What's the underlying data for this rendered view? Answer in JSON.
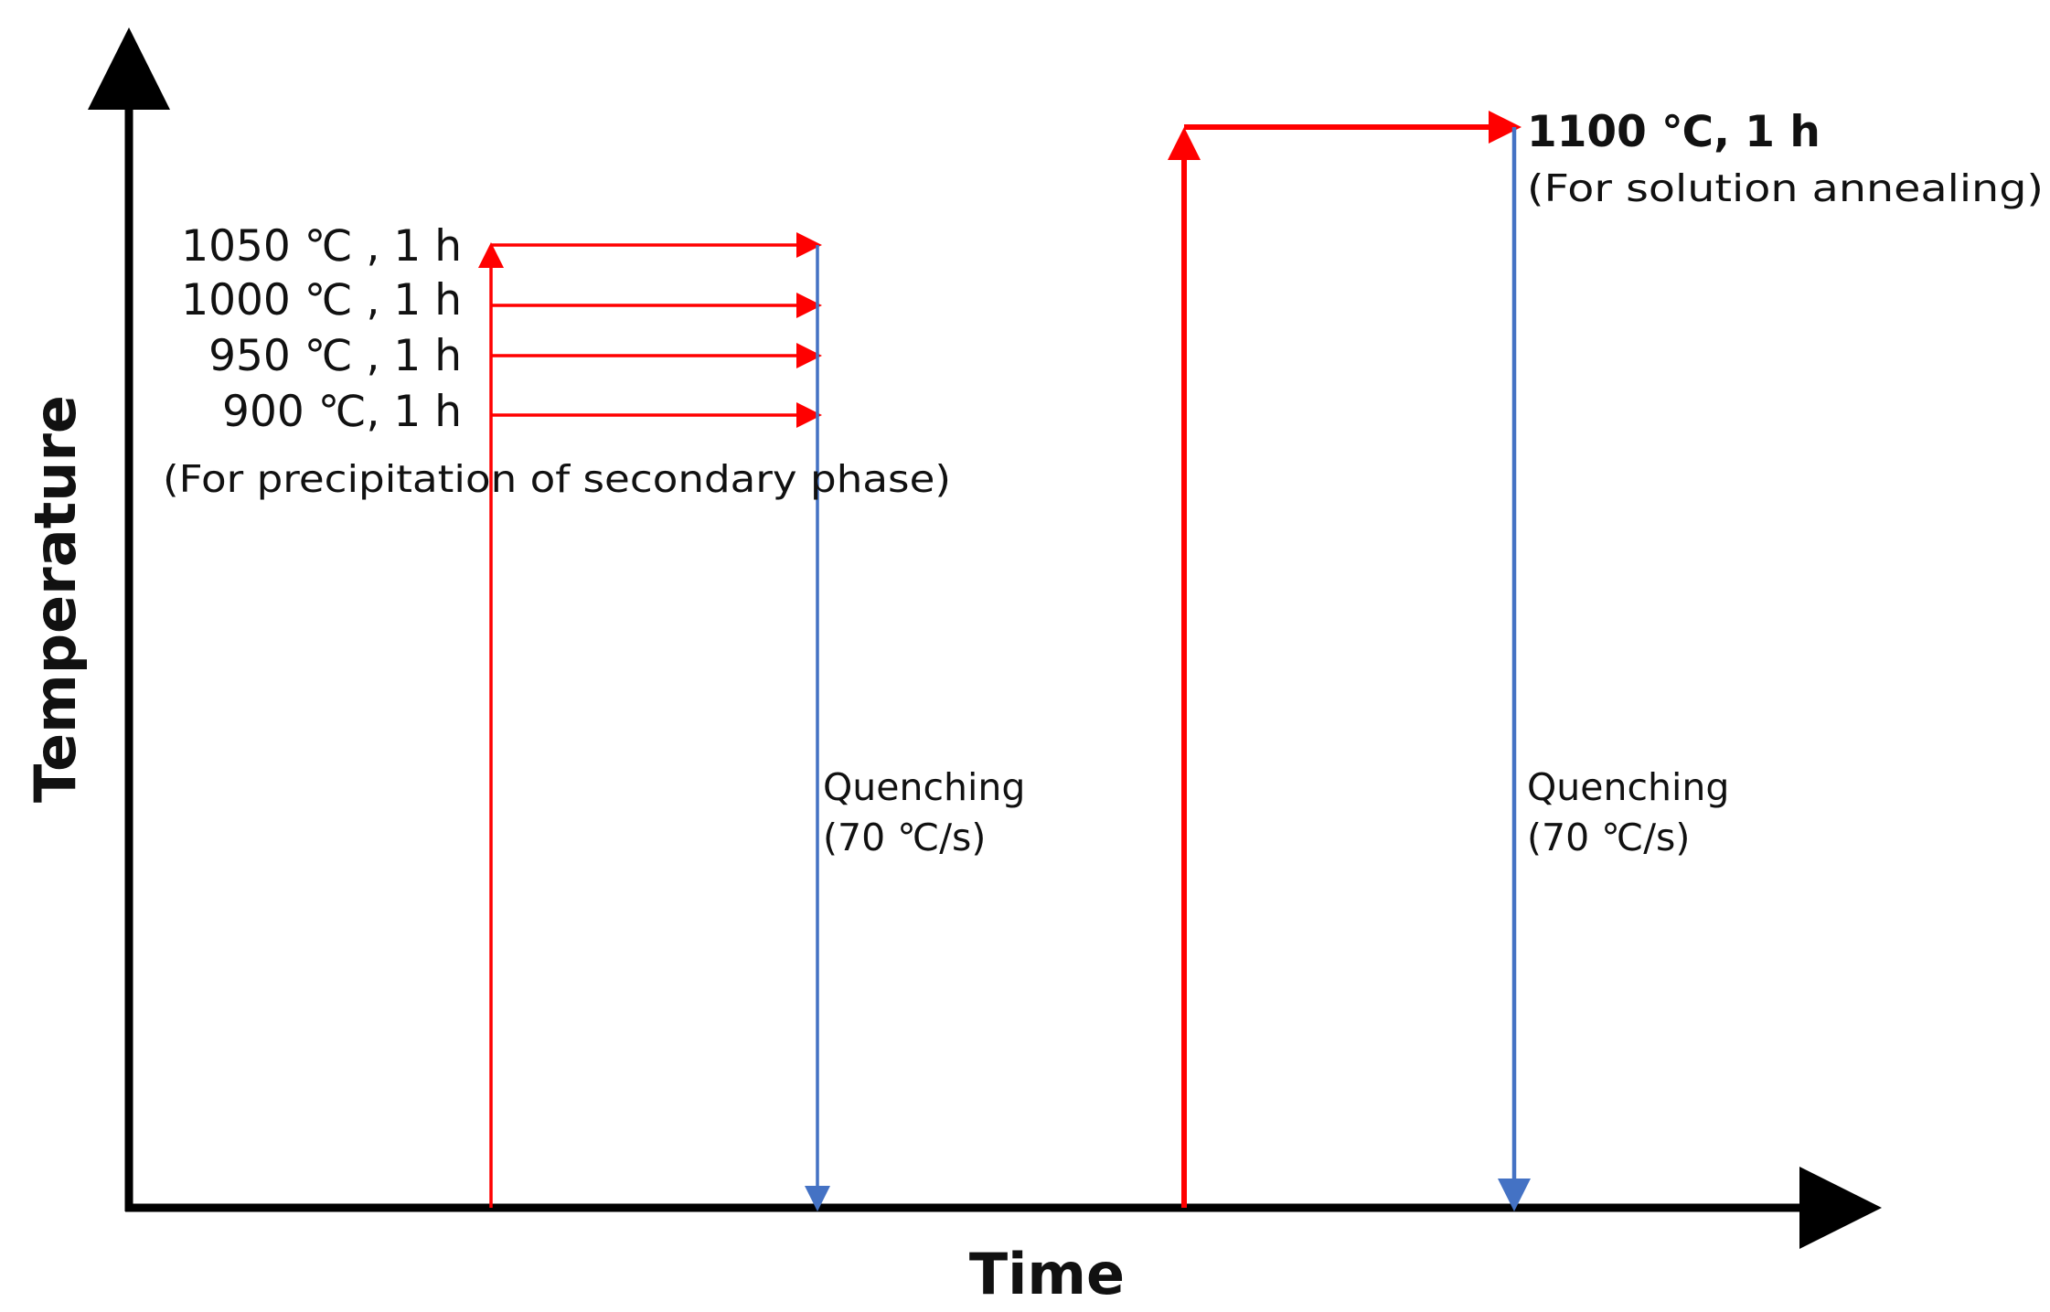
{
  "axes": {
    "x_label": "Time",
    "y_label": "Temperature"
  },
  "left_process": {
    "steps": [
      {
        "label": "1050 ℃ , 1 h"
      },
      {
        "label": "1000 ℃ , 1 h"
      },
      {
        "label": "950 ℃ , 1 h"
      },
      {
        "label": "900 ℃, 1 h"
      }
    ],
    "note": "(For precipitation of secondary phase)",
    "quench_line1": "Quenching",
    "quench_line2": "(70 ℃/s)"
  },
  "right_process": {
    "label": "1100 ℃, 1 h",
    "note": "(For solution annealing)",
    "quench_line1": "Quenching",
    "quench_line2": "(70 ℃/s)"
  },
  "colors": {
    "axis": "#000000",
    "heating": "#ff0000",
    "cooling": "#4472c4"
  }
}
